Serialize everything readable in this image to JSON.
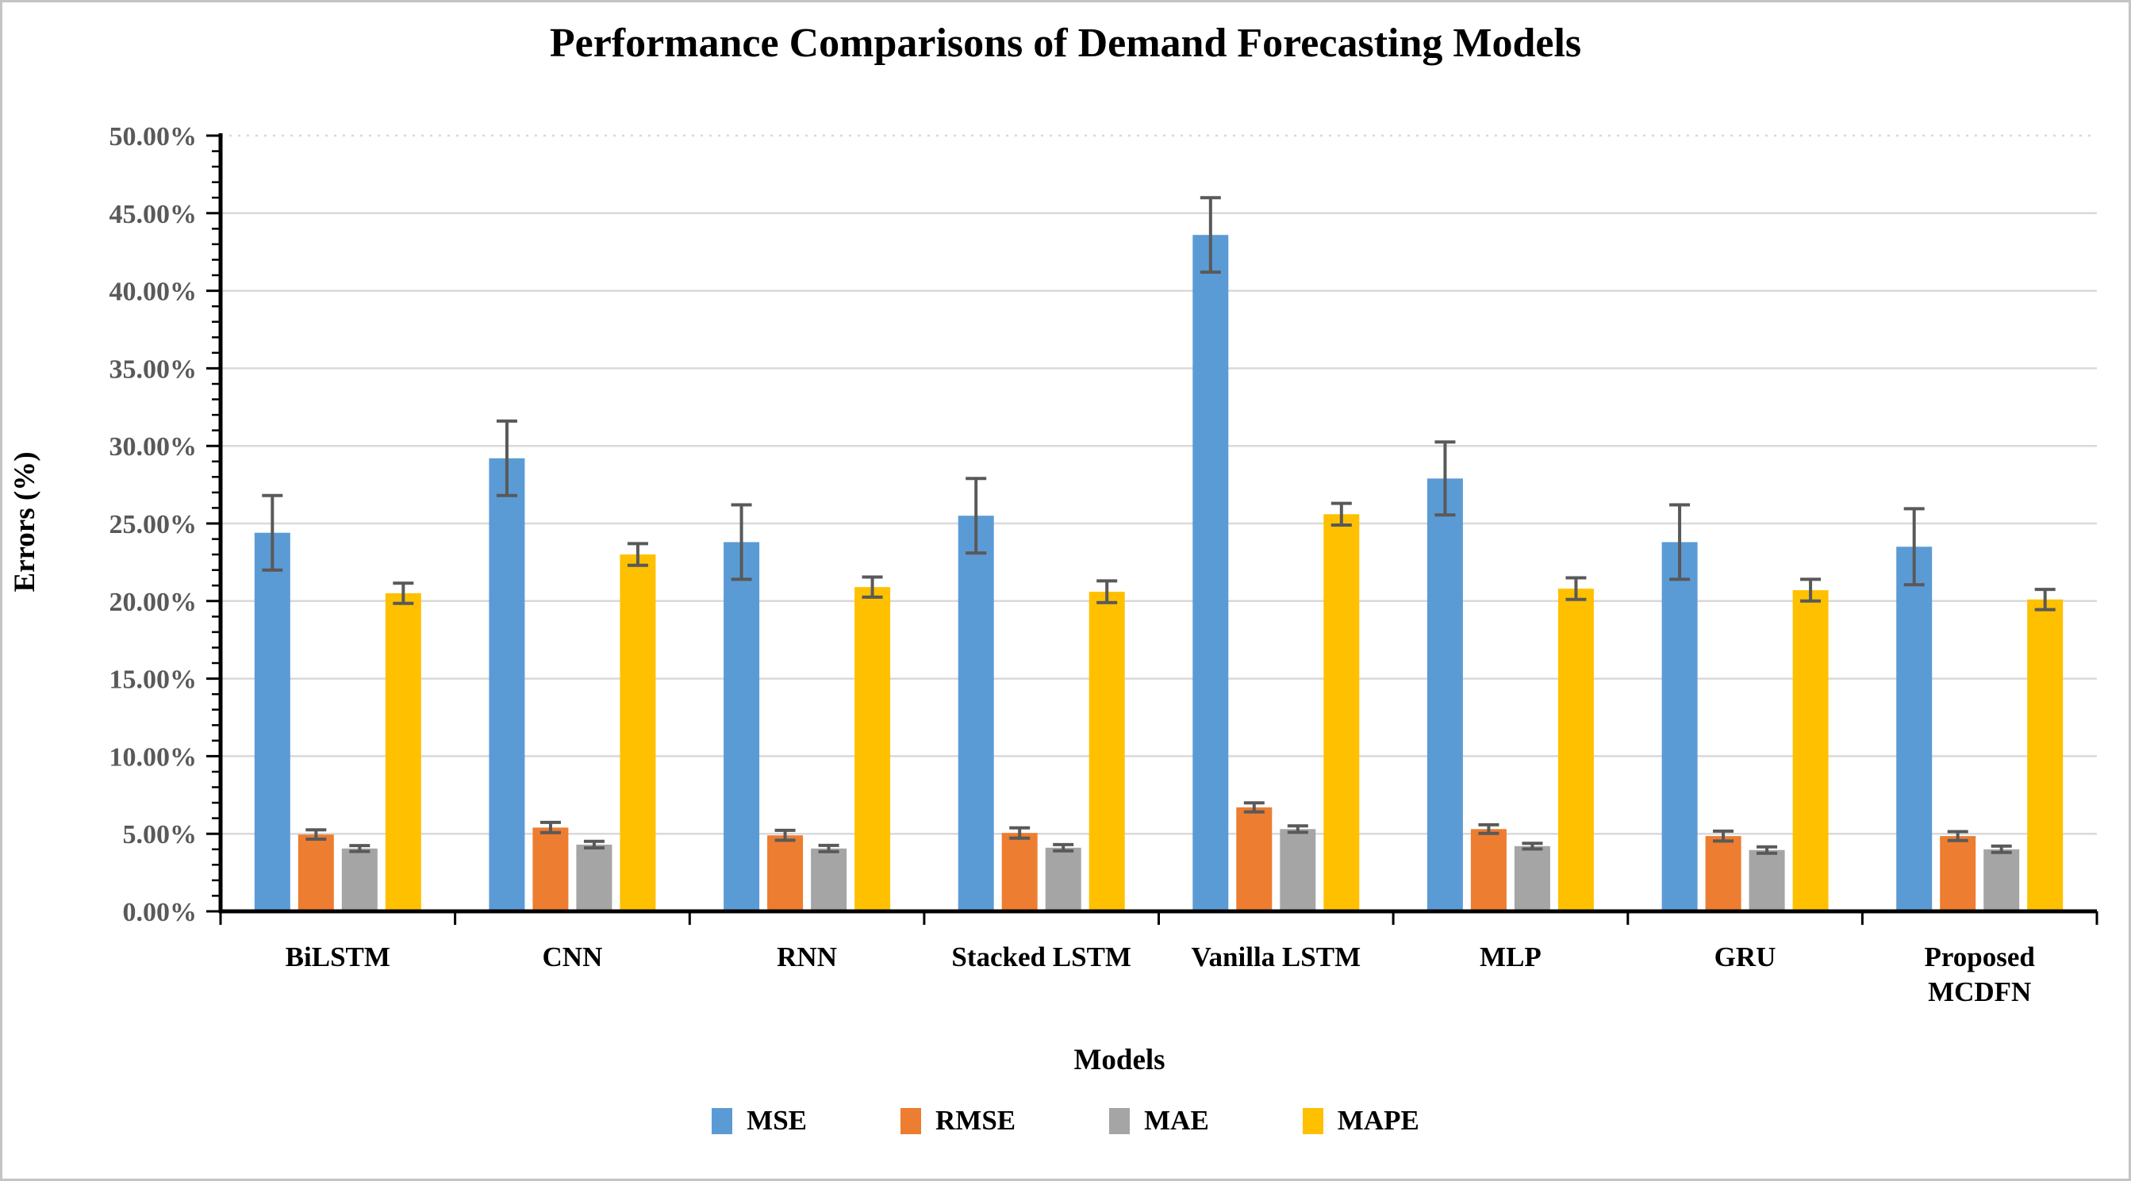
{
  "title": "Performance Comparisons of Demand Forecasting Models",
  "y_axis": {
    "label": "Errors (%)",
    "ticks": [
      "0.00%",
      "5.00%",
      "10.00%",
      "15.00%",
      "20.00%",
      "25.00%",
      "30.00%",
      "35.00%",
      "40.00%",
      "45.00%",
      "50.00%"
    ],
    "max": 50,
    "major_step": 5,
    "minor_step": 1
  },
  "x_axis": {
    "label": "Models"
  },
  "legend": [
    "MSE",
    "RMSE",
    "MAE",
    "MAPE"
  ],
  "colors": {
    "mse": "#5B9BD5",
    "rmse": "#ED7D31",
    "mae": "#A5A5A5",
    "mape": "#FFC000",
    "error_bar": "#595959",
    "gridline": "#D9D9D9",
    "axis": "#000000",
    "tick_label": "#595959"
  },
  "chart_data": {
    "type": "bar",
    "title": "Performance Comparisons of Demand Forecasting Models",
    "xlabel": "Models",
    "ylabel": "Errors (%)",
    "ylim": [
      0,
      50
    ],
    "grid": true,
    "top_gridline_style": "dotted",
    "legend_position": "bottom",
    "error_bars": true,
    "categories": [
      "BiLSTM",
      "CNN",
      "RNN",
      "Stacked LSTM",
      "Vanilla LSTM",
      "MLP",
      "GRU",
      "Proposed MCDFN"
    ],
    "series": [
      {
        "name": "MSE",
        "color": "#5B9BD5",
        "values": [
          24.4,
          29.2,
          23.8,
          25.5,
          43.6,
          27.9,
          23.8,
          23.5
        ],
        "errors": [
          2.4,
          2.4,
          2.4,
          2.4,
          2.4,
          2.35,
          2.4,
          2.45
        ]
      },
      {
        "name": "RMSE",
        "color": "#ED7D31",
        "values": [
          4.95,
          5.4,
          4.9,
          5.05,
          6.7,
          5.3,
          4.85,
          4.85
        ],
        "errors": [
          0.3,
          0.33,
          0.32,
          0.33,
          0.29,
          0.28,
          0.32,
          0.29
        ]
      },
      {
        "name": "MAE",
        "color": "#A5A5A5",
        "values": [
          4.05,
          4.3,
          4.05,
          4.1,
          5.3,
          4.2,
          3.95,
          4.0
        ],
        "errors": [
          0.19,
          0.21,
          0.2,
          0.2,
          0.21,
          0.18,
          0.2,
          0.2
        ]
      },
      {
        "name": "MAPE",
        "color": "#FFC000",
        "values": [
          20.5,
          23.0,
          20.9,
          20.6,
          25.6,
          20.8,
          20.7,
          20.1
        ],
        "errors": [
          0.65,
          0.7,
          0.65,
          0.7,
          0.7,
          0.7,
          0.7,
          0.65
        ]
      }
    ]
  }
}
